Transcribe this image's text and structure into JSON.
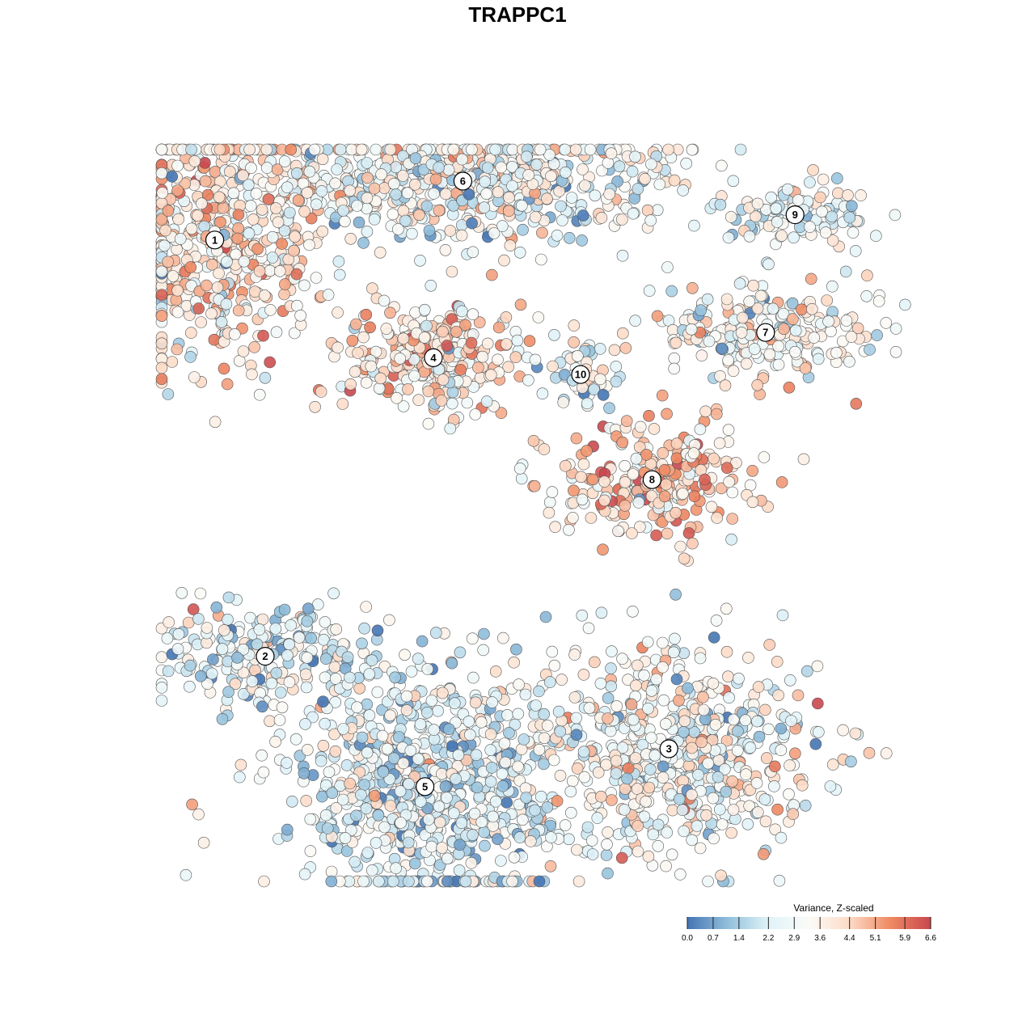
{
  "chart_data": {
    "type": "scatter",
    "title": "TRAPPC1",
    "xlabel": "",
    "ylabel": "",
    "grid": false,
    "legend": {
      "title": "Variance, Z-scaled",
      "placement": "bottom-right",
      "ticks": [
        "0.0",
        "0.7",
        "1.4",
        "2.2",
        "2.9",
        "3.6",
        "4.4",
        "5.1",
        "5.9",
        "6.6"
      ],
      "range": [
        0.0,
        6.6
      ]
    },
    "color_scale": [
      "#4575b4",
      "#91bfdb",
      "#e0f3f8",
      "#fbfbf7",
      "#fddbc7",
      "#ef8a62",
      "#c9474e"
    ],
    "clusters": [
      {
        "id": "1",
        "x": -7.2,
        "y": 6.6,
        "sx": 1.8,
        "sy": 2.1,
        "mean": 3.9,
        "n": 520
      },
      {
        "id": "2",
        "x": -6.0,
        "y": -3.3,
        "sx": 1.9,
        "sy": 0.9,
        "mean": 2.6,
        "n": 230
      },
      {
        "id": "3",
        "x": 3.6,
        "y": -5.5,
        "sx": 2.4,
        "sy": 1.7,
        "mean": 3.1,
        "n": 620
      },
      {
        "id": "4",
        "x": -2.0,
        "y": 3.8,
        "sx": 1.4,
        "sy": 0.9,
        "mean": 3.8,
        "n": 300
      },
      {
        "id": "5",
        "x": -2.2,
        "y": -6.4,
        "sx": 2.1,
        "sy": 1.9,
        "mean": 2.3,
        "n": 780
      },
      {
        "id": "6",
        "x": -1.3,
        "y": 8.0,
        "sx": 3.4,
        "sy": 1.0,
        "mean": 3.0,
        "n": 620
      },
      {
        "id": "7",
        "x": 5.9,
        "y": 4.4,
        "sx": 1.9,
        "sy": 0.7,
        "mean": 3.4,
        "n": 230
      },
      {
        "id": "8",
        "x": 3.2,
        "y": 0.9,
        "sx": 1.7,
        "sy": 0.9,
        "mean": 4.4,
        "n": 240
      },
      {
        "id": "9",
        "x": 6.6,
        "y": 7.2,
        "sx": 1.2,
        "sy": 0.5,
        "mean": 2.6,
        "n": 120
      },
      {
        "id": "10",
        "x": 1.5,
        "y": 3.4,
        "sx": 0.6,
        "sy": 0.6,
        "mean": 2.9,
        "n": 50
      }
    ]
  }
}
